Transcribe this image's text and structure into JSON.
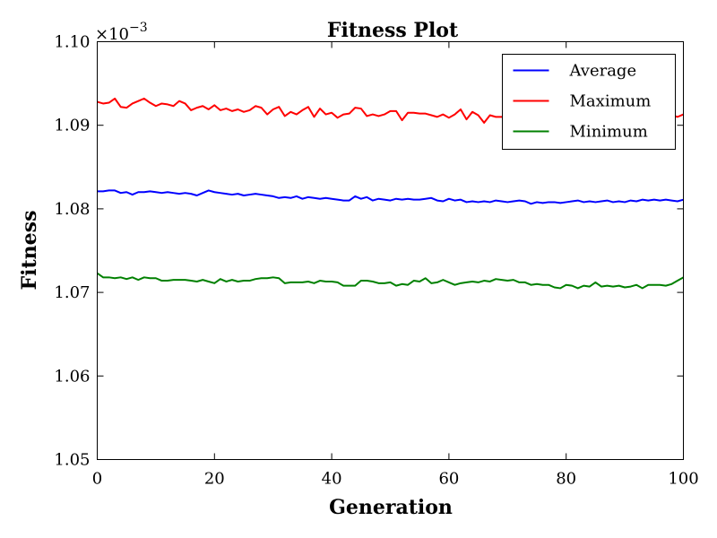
{
  "chart_data": {
    "type": "line",
    "title": "Fitness Plot",
    "xlabel": "Generation",
    "ylabel": "Fitness",
    "offset_label_base": "×10",
    "offset_label_exp": "−3",
    "xlim": [
      0,
      100
    ],
    "ylim": [
      1.05,
      1.1
    ],
    "xticks": [
      0,
      20,
      40,
      60,
      80,
      100
    ],
    "xtick_labels": [
      "0",
      "20",
      "40",
      "60",
      "80",
      "100"
    ],
    "yticks": [
      1.05,
      1.06,
      1.07,
      1.08,
      1.09,
      1.1
    ],
    "ytick_labels": [
      "1.05",
      "1.06",
      "1.07",
      "1.08",
      "1.09",
      "1.10"
    ],
    "grid": false,
    "legend_position": "top-right",
    "series": [
      {
        "name": "Average",
        "color": "#0000ff",
        "x": [
          0,
          1,
          2,
          3,
          4,
          5,
          6,
          7,
          8,
          9,
          10,
          11,
          12,
          13,
          14,
          15,
          16,
          17,
          18,
          19,
          20,
          21,
          22,
          23,
          24,
          25,
          26,
          27,
          28,
          29,
          30,
          31,
          32,
          33,
          34,
          35,
          36,
          37,
          38,
          39,
          40,
          41,
          42,
          43,
          44,
          45,
          46,
          47,
          48,
          49,
          50,
          51,
          52,
          53,
          54,
          55,
          56,
          57,
          58,
          59,
          60,
          61,
          62,
          63,
          64,
          65,
          66,
          67,
          68,
          69,
          70,
          71,
          72,
          73,
          74,
          75,
          76,
          77,
          78,
          79,
          80,
          81,
          82,
          83,
          84,
          85,
          86,
          87,
          88,
          89,
          90,
          91,
          92,
          93,
          94,
          95,
          96,
          97,
          98,
          99,
          100
        ],
        "values": [
          1.0821,
          1.0821,
          1.0822,
          1.0822,
          1.0819,
          1.082,
          1.0817,
          1.082,
          1.082,
          1.0821,
          1.082,
          1.0819,
          1.082,
          1.0819,
          1.0818,
          1.0819,
          1.0818,
          1.0816,
          1.0819,
          1.0822,
          1.082,
          1.0819,
          1.0818,
          1.0817,
          1.0818,
          1.0816,
          1.0817,
          1.0818,
          1.0817,
          1.0816,
          1.0815,
          1.0813,
          1.0814,
          1.0813,
          1.0815,
          1.0812,
          1.0814,
          1.0813,
          1.0812,
          1.0813,
          1.0812,
          1.0811,
          1.081,
          1.081,
          1.0815,
          1.0812,
          1.0814,
          1.081,
          1.0812,
          1.0811,
          1.081,
          1.0812,
          1.0811,
          1.0812,
          1.0811,
          1.0811,
          1.0812,
          1.0813,
          1.081,
          1.0809,
          1.0812,
          1.081,
          1.0811,
          1.0808,
          1.0809,
          1.0808,
          1.0809,
          1.0808,
          1.081,
          1.0809,
          1.0808,
          1.0809,
          1.081,
          1.0809,
          1.0806,
          1.0808,
          1.0807,
          1.0808,
          1.0808,
          1.0807,
          1.0808,
          1.0809,
          1.081,
          1.0808,
          1.0809,
          1.0808,
          1.0809,
          1.081,
          1.0808,
          1.0809,
          1.0808,
          1.081,
          1.0809,
          1.0811,
          1.081,
          1.0811,
          1.081,
          1.0811,
          1.081,
          1.0809,
          1.0811
        ]
      },
      {
        "name": "Maximum",
        "color": "#ff0000",
        "x": [
          0,
          1,
          2,
          3,
          4,
          5,
          6,
          7,
          8,
          9,
          10,
          11,
          12,
          13,
          14,
          15,
          16,
          17,
          18,
          19,
          20,
          21,
          22,
          23,
          24,
          25,
          26,
          27,
          28,
          29,
          30,
          31,
          32,
          33,
          34,
          35,
          36,
          37,
          38,
          39,
          40,
          41,
          42,
          43,
          44,
          45,
          46,
          47,
          48,
          49,
          50,
          51,
          52,
          53,
          54,
          55,
          56,
          57,
          58,
          59,
          60,
          61,
          62,
          63,
          64,
          65,
          66,
          67,
          68,
          69,
          70,
          71,
          72,
          73,
          74,
          75,
          76,
          77,
          78,
          79,
          80,
          81,
          82,
          83,
          84,
          85,
          86,
          87,
          88,
          89,
          90,
          91,
          92,
          93,
          94,
          95,
          96,
          97,
          98,
          99,
          100
        ],
        "values": [
          1.0928,
          1.0926,
          1.0927,
          1.0932,
          1.0922,
          1.0921,
          1.0926,
          1.0929,
          1.0932,
          1.0927,
          1.0923,
          1.0926,
          1.0925,
          1.0923,
          1.0929,
          1.0926,
          1.0918,
          1.0921,
          1.0923,
          1.0919,
          1.0924,
          1.0918,
          1.092,
          1.0917,
          1.0919,
          1.0916,
          1.0918,
          1.0923,
          1.0921,
          1.0913,
          1.0919,
          1.0922,
          1.0911,
          1.0916,
          1.0913,
          1.0918,
          1.0922,
          1.091,
          1.092,
          1.0913,
          1.0915,
          1.0909,
          1.0913,
          1.0914,
          1.0921,
          1.092,
          1.0911,
          1.0913,
          1.0911,
          1.0913,
          1.0917,
          1.0917,
          1.0906,
          1.0915,
          1.0915,
          1.0914,
          1.0914,
          1.0912,
          1.091,
          1.0913,
          1.0909,
          1.0913,
          1.0919,
          1.0907,
          1.0916,
          1.0912,
          1.0903,
          1.0912,
          1.091,
          1.091,
          1.0911,
          1.0911,
          1.0912,
          1.0914,
          1.091,
          1.0912,
          1.0911,
          1.0913,
          1.0912,
          1.0909,
          1.0911,
          1.0912,
          1.0915,
          1.0911,
          1.0913,
          1.0913,
          1.0911,
          1.0912,
          1.0911,
          1.0913,
          1.0912,
          1.0913,
          1.0913,
          1.0912,
          1.0911,
          1.0912,
          1.091,
          1.0913,
          1.0912,
          1.091,
          1.0913
        ]
      },
      {
        "name": "Minimum",
        "color": "#008000",
        "x": [
          0,
          1,
          2,
          3,
          4,
          5,
          6,
          7,
          8,
          9,
          10,
          11,
          12,
          13,
          14,
          15,
          16,
          17,
          18,
          19,
          20,
          21,
          22,
          23,
          24,
          25,
          26,
          27,
          28,
          29,
          30,
          31,
          32,
          33,
          34,
          35,
          36,
          37,
          38,
          39,
          40,
          41,
          42,
          43,
          44,
          45,
          46,
          47,
          48,
          49,
          50,
          51,
          52,
          53,
          54,
          55,
          56,
          57,
          58,
          59,
          60,
          61,
          62,
          63,
          64,
          65,
          66,
          67,
          68,
          69,
          70,
          71,
          72,
          73,
          74,
          75,
          76,
          77,
          78,
          79,
          80,
          81,
          82,
          83,
          84,
          85,
          86,
          87,
          88,
          89,
          90,
          91,
          92,
          93,
          94,
          95,
          96,
          97,
          98,
          99,
          100
        ],
        "values": [
          1.0723,
          1.0718,
          1.0718,
          1.0717,
          1.0718,
          1.0716,
          1.0718,
          1.0715,
          1.0718,
          1.0717,
          1.0717,
          1.0714,
          1.0714,
          1.0715,
          1.0715,
          1.0715,
          1.0714,
          1.0713,
          1.0715,
          1.0713,
          1.0711,
          1.0716,
          1.0713,
          1.0715,
          1.0713,
          1.0714,
          1.0714,
          1.0716,
          1.0717,
          1.0717,
          1.0718,
          1.0717,
          1.0711,
          1.0712,
          1.0712,
          1.0712,
          1.0713,
          1.0711,
          1.0714,
          1.0713,
          1.0713,
          1.0712,
          1.0708,
          1.0708,
          1.0708,
          1.0714,
          1.0714,
          1.0713,
          1.0711,
          1.0711,
          1.0712,
          1.0708,
          1.071,
          1.0709,
          1.0714,
          1.0713,
          1.0717,
          1.0711,
          1.0712,
          1.0715,
          1.0712,
          1.0709,
          1.0711,
          1.0712,
          1.0713,
          1.0712,
          1.0714,
          1.0713,
          1.0716,
          1.0715,
          1.0714,
          1.0715,
          1.0712,
          1.0712,
          1.0709,
          1.071,
          1.0709,
          1.0709,
          1.0706,
          1.0705,
          1.0709,
          1.0708,
          1.0705,
          1.0708,
          1.0707,
          1.0712,
          1.0707,
          1.0708,
          1.0707,
          1.0708,
          1.0706,
          1.0707,
          1.0709,
          1.0705,
          1.0709,
          1.0709,
          1.0709,
          1.0708,
          1.071,
          1.0714,
          1.0718
        ]
      }
    ]
  }
}
